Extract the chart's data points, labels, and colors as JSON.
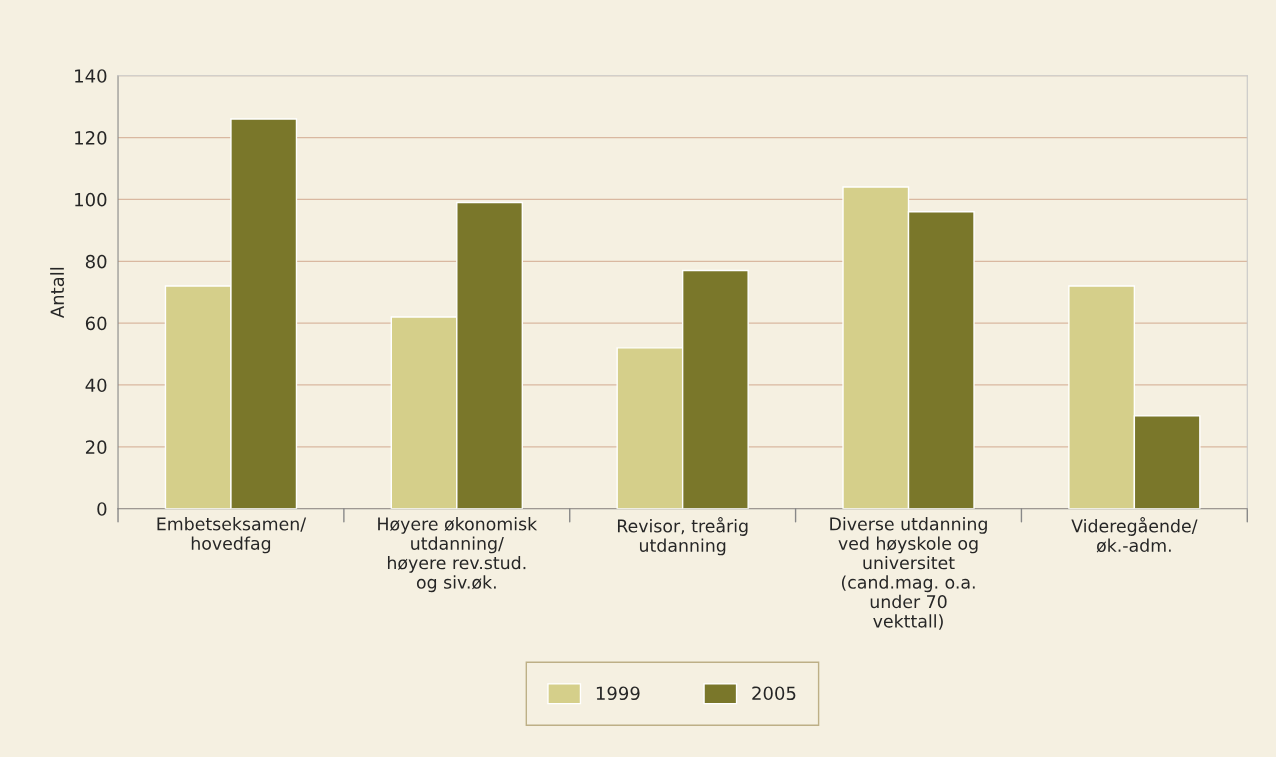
{
  "chart_data": {
    "type": "bar",
    "ylabel": "Antall",
    "categories": [
      "Embetseksamen/\nhovedfag",
      "Høyere økonomisk\nutdanning/\nhøyere rev.stud.\nog siv.øk.",
      "Revisor, treårig\nutdanning",
      "Diverse utdanning\nved høyskole og\nuniversitet\n(cand.mag. o.a.\nunder 70\nvekttall)",
      "Videregående/\nøk.-adm."
    ],
    "series": [
      {
        "name": "1999",
        "color": "#d5cf8a",
        "values": [
          72,
          62,
          52,
          104,
          72
        ]
      },
      {
        "name": "2005",
        "color": "#7a772a",
        "values": [
          126,
          99,
          77,
          96,
          30
        ]
      }
    ],
    "ylim": [
      0,
      140
    ],
    "yticks": [
      0,
      20,
      40,
      60,
      80,
      100,
      120,
      140
    ],
    "grid": "y",
    "legend": "bottom"
  }
}
